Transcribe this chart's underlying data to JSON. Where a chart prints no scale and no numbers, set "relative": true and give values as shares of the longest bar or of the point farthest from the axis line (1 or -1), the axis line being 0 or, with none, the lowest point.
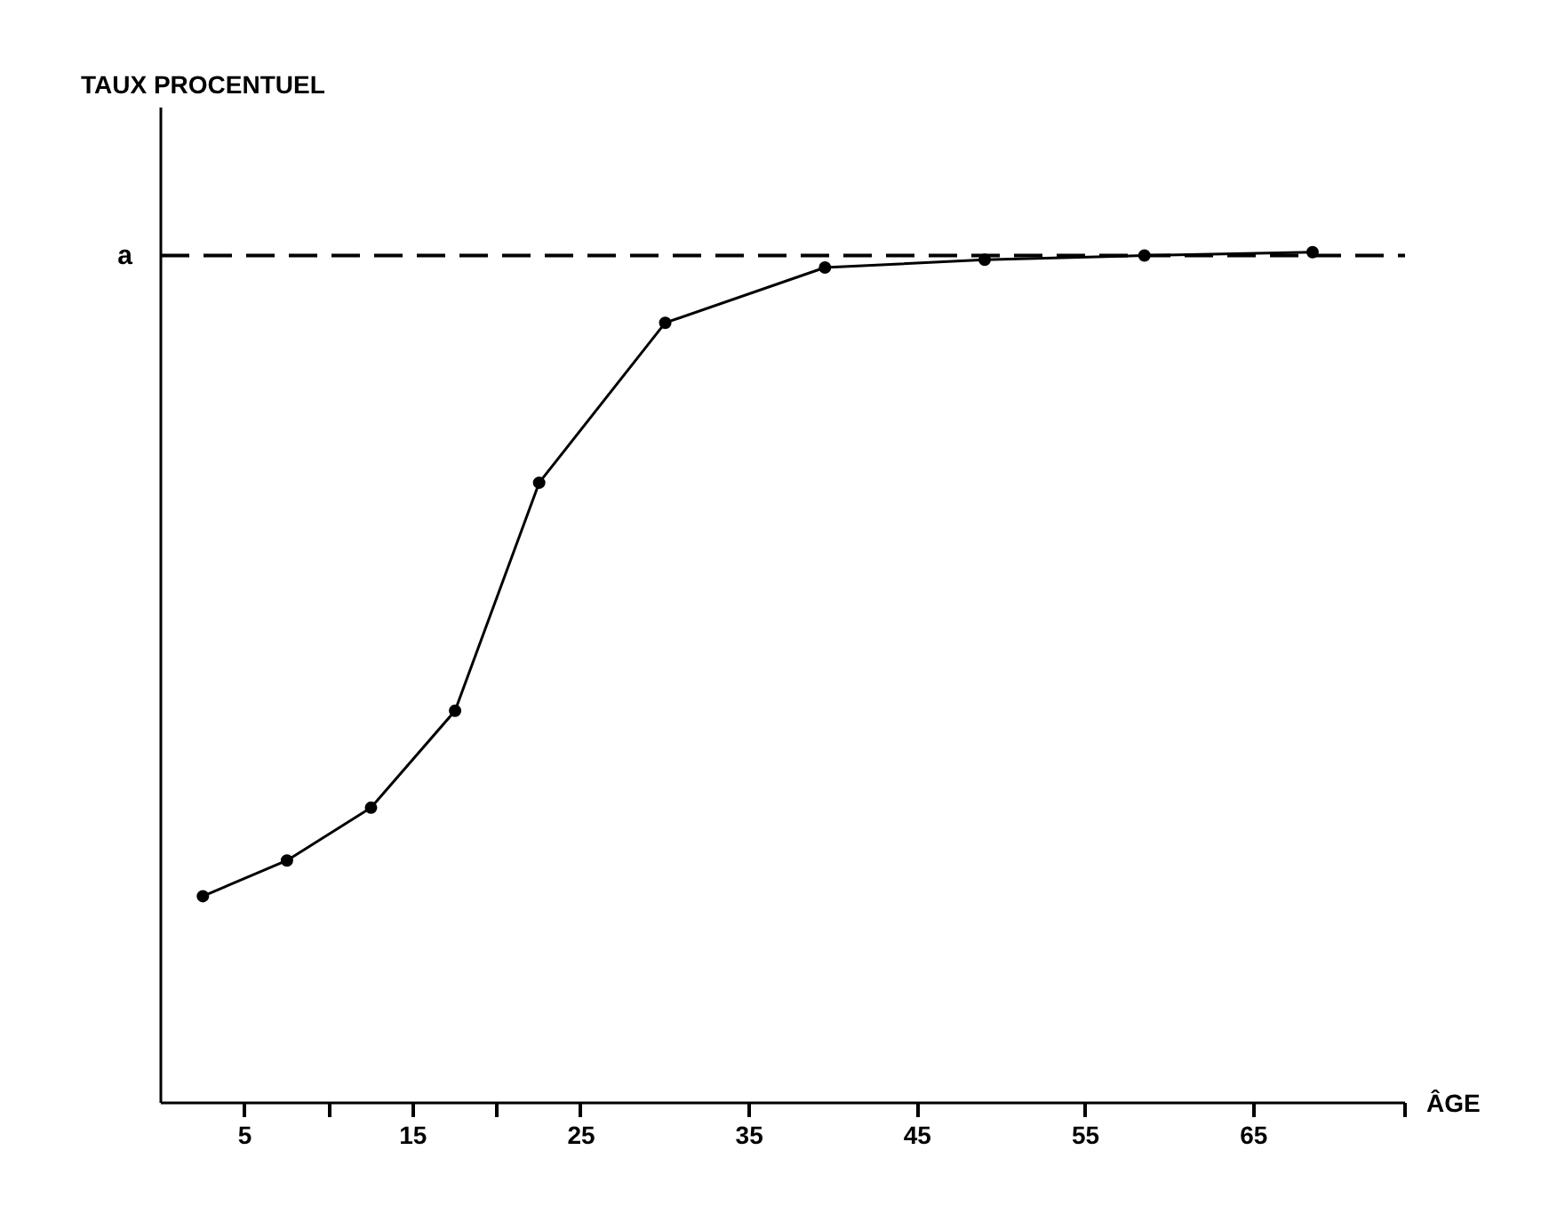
{
  "chart_data": {
    "type": "line",
    "relative": true,
    "annotations": [
      "TAUX PROCENTUEL"
    ],
    "xlabel": "ÂGE",
    "x": [
      2.5,
      7.5,
      12.5,
      17.5,
      22.5,
      30,
      39.5,
      49,
      58.5,
      68.5
    ],
    "series": [
      {
        "color": "#000000",
        "values": [
          0.243,
          0.285,
          0.347,
          0.461,
          0.729,
          0.917,
          0.982,
          0.991,
          0.996,
          1.0
        ]
      }
    ],
    "xlim": [
      0,
      74
    ],
    "xticks": [
      5,
      {
        "value": 10,
        "label": null
      },
      15,
      {
        "value": 20,
        "label": null
      },
      25,
      35,
      45,
      55,
      65,
      {
        "value": 74,
        "label": null
      }
    ],
    "ref_lines": [
      {
        "axis": "y",
        "value": 0.996,
        "label": "a",
        "color": "#000000",
        "line_style": "dashed"
      }
    ],
    "marker": "circle",
    "line_style": "solid",
    "grid": false
  }
}
